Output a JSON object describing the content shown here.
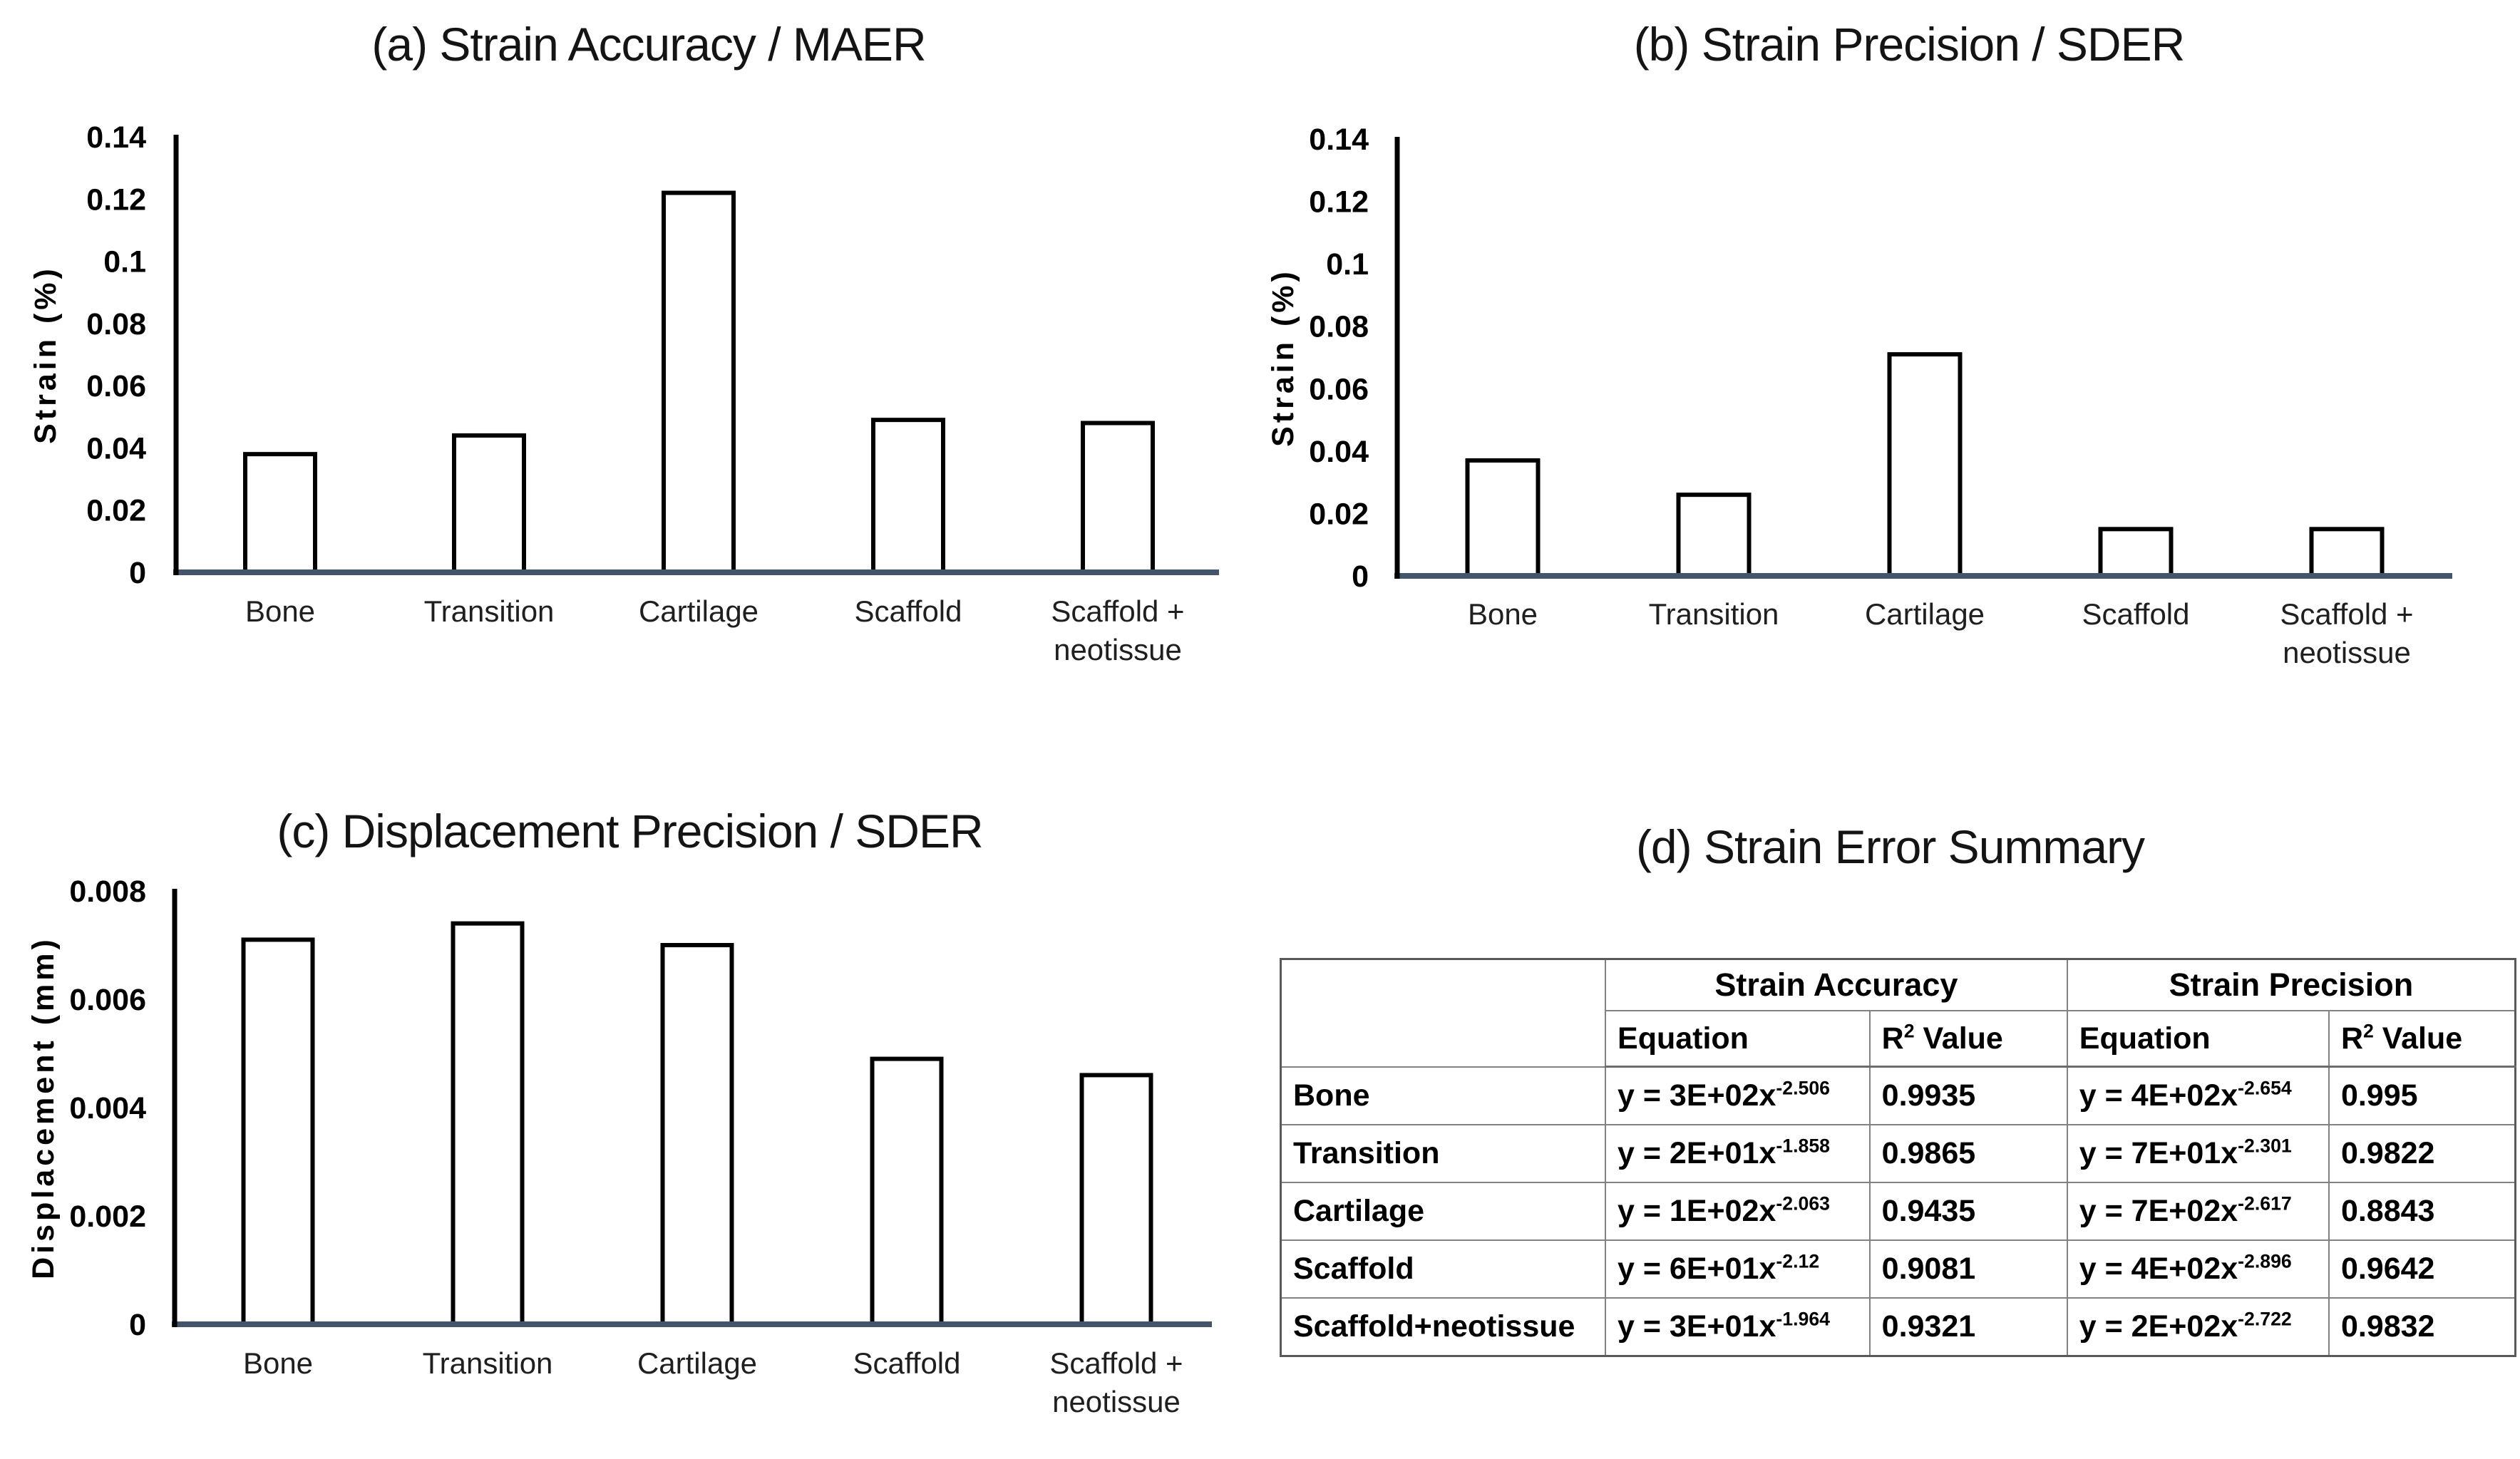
{
  "chart_data": [
    {
      "type": "bar",
      "panel": "a",
      "title": "(a) Strain Accuracy / MAER",
      "xlabel": "",
      "ylabel": "Strain (%)",
      "ylim": [
        0,
        0.14
      ],
      "yticks": [
        0,
        0.02,
        0.04,
        0.06,
        0.08,
        0.1,
        0.12,
        0.14
      ],
      "ytick_labels": [
        "0",
        "0.02",
        "0.04",
        "0.06",
        "0.08",
        "0.1",
        "0.12",
        "0.14"
      ],
      "categories": [
        "Bone",
        "Transition",
        "Cartilage",
        "Scaffold",
        "Scaffold +\nneotissue"
      ],
      "values": [
        0.038,
        0.044,
        0.122,
        0.049,
        0.048
      ],
      "grid": false,
      "legend": "none",
      "bar_fill": "#ffffff",
      "bar_stroke": "#000000",
      "axis_color": "#000000",
      "baseline_color": "#44546a"
    },
    {
      "type": "bar",
      "panel": "b",
      "title": "(b) Strain Precision / SDER",
      "xlabel": "",
      "ylabel": "Strain (%)",
      "ylim": [
        0,
        0.14
      ],
      "yticks": [
        0,
        0.02,
        0.04,
        0.06,
        0.08,
        0.1,
        0.12,
        0.14
      ],
      "ytick_labels": [
        "0",
        "0.02",
        "0.04",
        "0.06",
        "0.08",
        "0.1",
        "0.12",
        "0.14"
      ],
      "categories": [
        "Bone",
        "Transition",
        "Cartilage",
        "Scaffold",
        "Scaffold +\nneotissue"
      ],
      "values": [
        0.037,
        0.026,
        0.071,
        0.015,
        0.015
      ],
      "grid": false,
      "legend": "none",
      "bar_fill": "#ffffff",
      "bar_stroke": "#000000",
      "axis_color": "#000000",
      "baseline_color": "#44546a"
    },
    {
      "type": "bar",
      "panel": "c",
      "title": "(c) Displacement Precision / SDER",
      "xlabel": "",
      "ylabel": "Displacement (mm)",
      "ylim": [
        0,
        0.008
      ],
      "yticks": [
        0,
        0.002,
        0.004,
        0.006,
        0.008
      ],
      "ytick_labels": [
        "0",
        "0.002",
        "0.004",
        "0.006",
        "0.008"
      ],
      "categories": [
        "Bone",
        "Transition",
        "Cartilage",
        "Scaffold",
        "Scaffold +\nneotissue"
      ],
      "values": [
        0.0071,
        0.0074,
        0.007,
        0.0049,
        0.0046
      ],
      "grid": false,
      "legend": "none",
      "bar_fill": "#ffffff",
      "bar_stroke": "#000000",
      "axis_color": "#000000",
      "baseline_color": "#44546a"
    },
    {
      "type": "table",
      "panel": "d",
      "title": "(d) Strain Error Summary",
      "column_groups": [
        "Strain Accuracy",
        "Strain Precision"
      ],
      "sub_headers": [
        "Equation",
        "R² Value",
        "Equation",
        "R² Value"
      ],
      "rows": [
        {
          "label": "Bone",
          "acc_equation_base": "y = 3E+02x",
          "acc_equation_exp": "-2.506",
          "acc_r2": "0.9935",
          "prec_equation_base": "y = 4E+02x",
          "prec_equation_exp": "-2.654",
          "prec_r2": "0.995"
        },
        {
          "label": "Transition",
          "acc_equation_base": "y = 2E+01x",
          "acc_equation_exp": "-1.858",
          "acc_r2": "0.9865",
          "prec_equation_base": "y = 7E+01x",
          "prec_equation_exp": "-2.301",
          "prec_r2": "0.9822"
        },
        {
          "label": "Cartilage",
          "acc_equation_base": "y = 1E+02x",
          "acc_equation_exp": "-2.063",
          "acc_r2": "0.9435",
          "prec_equation_base": "y = 7E+02x",
          "prec_equation_exp": "-2.617",
          "prec_r2": "0.8843"
        },
        {
          "label": "Scaffold",
          "acc_equation_base": "y = 6E+01x",
          "acc_equation_exp": "-2.12",
          "acc_r2": "0.9081",
          "prec_equation_base": "y = 4E+02x",
          "prec_equation_exp": "-2.896",
          "prec_r2": "0.9642"
        },
        {
          "label": "Scaffold+neotissue",
          "acc_equation_base": "y = 3E+01x",
          "acc_equation_exp": "-1.964",
          "acc_r2": "0.9321",
          "prec_equation_base": "y = 2E+02x",
          "prec_equation_exp": "-2.722",
          "prec_r2": "0.9832"
        }
      ]
    }
  ],
  "colors": {
    "background": "#ffffff",
    "text": "#141414",
    "category_label": "#1f1f1f",
    "axis_baseline": "#44546a",
    "bar_stroke": "#000000",
    "table_border": "#828282",
    "table_outer_border": "#595959"
  }
}
